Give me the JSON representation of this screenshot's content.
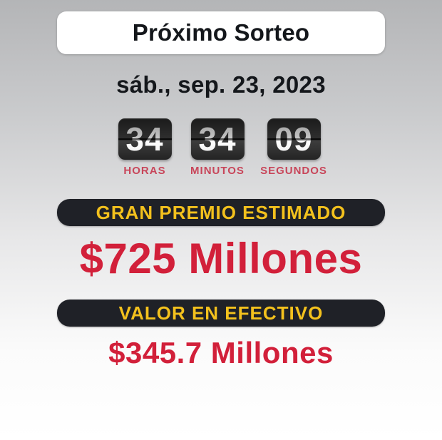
{
  "widget": {
    "title": "Próximo Sorteo",
    "date": "sáb., sep. 23, 2023",
    "countdown": [
      {
        "value": "34",
        "label": "HORAS"
      },
      {
        "value": "34",
        "label": "MINUTOS"
      },
      {
        "value": "09",
        "label": "SEGUNDOS"
      }
    ],
    "jackpot": {
      "label": "GRAN PREMIO ESTIMADO",
      "amount": "$725 Millones"
    },
    "cash": {
      "label": "VALOR EN EFECTIVO",
      "amount": "$345.7 Millones"
    },
    "colors": {
      "accent_red": "#d2203a",
      "label_red": "#c8465a",
      "gold": "#f3c11d",
      "pill_background": "#1f2127",
      "tile_background": "#262626"
    }
  }
}
